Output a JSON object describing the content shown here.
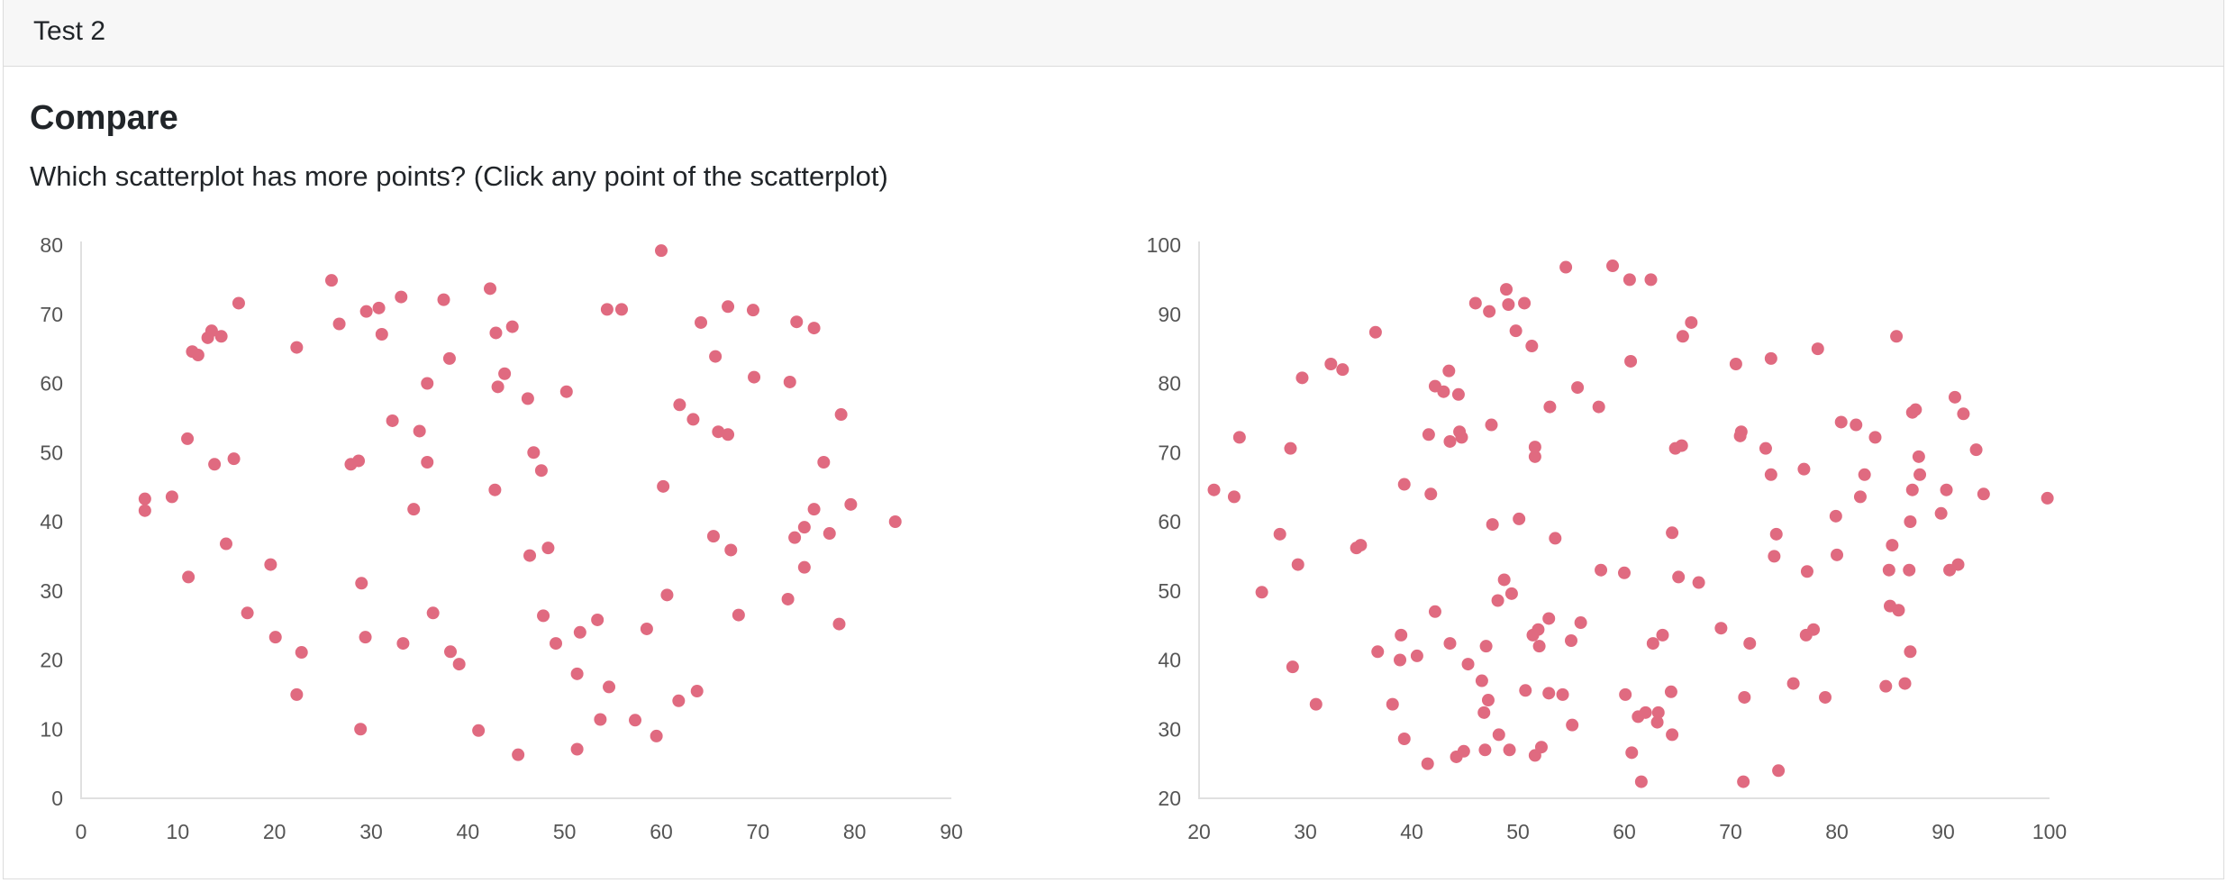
{
  "header": {
    "title": "Test 2"
  },
  "main": {
    "heading": "Compare",
    "question": "Which scatterplot has more points? (Click any point of the scatterplot)"
  },
  "colors": {
    "point": "#e06a80",
    "axis": "#e0e0e0",
    "tick_text": "#555555"
  },
  "chart_data": [
    {
      "type": "scatter",
      "title": "",
      "xlabel": "",
      "ylabel": "",
      "xlim": [
        0,
        90
      ],
      "ylim": [
        0,
        80
      ],
      "x_ticks": [
        0,
        10,
        20,
        30,
        40,
        50,
        60,
        70,
        80,
        90
      ],
      "y_ticks": [
        0,
        10,
        20,
        30,
        40,
        50,
        60,
        70,
        80
      ],
      "grid": false,
      "series": [
        {
          "points": [
            [
              6.6,
              43.3
            ],
            [
              6.6,
              41.6
            ],
            [
              9.4,
              43.6
            ],
            [
              11.0,
              52.0
            ],
            [
              11.1,
              32.0
            ],
            [
              11.5,
              64.6
            ],
            [
              12.1,
              64.1
            ],
            [
              13.1,
              66.6
            ],
            [
              13.5,
              67.6
            ],
            [
              14.5,
              66.8
            ],
            [
              13.8,
              48.3
            ],
            [
              15.0,
              36.8
            ],
            [
              15.8,
              49.1
            ],
            [
              16.3,
              71.6
            ],
            [
              17.2,
              26.8
            ],
            [
              19.6,
              33.8
            ],
            [
              20.1,
              23.3
            ],
            [
              22.3,
              65.2
            ],
            [
              22.3,
              15.0
            ],
            [
              22.8,
              21.1
            ],
            [
              25.9,
              74.9
            ],
            [
              26.7,
              68.6
            ],
            [
              27.9,
              48.3
            ],
            [
              28.7,
              48.8
            ],
            [
              29.0,
              31.1
            ],
            [
              29.4,
              23.3
            ],
            [
              28.9,
              10.0
            ],
            [
              29.5,
              70.4
            ],
            [
              30.8,
              70.9
            ],
            [
              31.1,
              67.1
            ],
            [
              32.2,
              54.6
            ],
            [
              33.1,
              72.5
            ],
            [
              33.3,
              22.4
            ],
            [
              34.4,
              41.8
            ],
            [
              35.0,
              53.1
            ],
            [
              35.8,
              60.0
            ],
            [
              35.8,
              48.6
            ],
            [
              36.4,
              26.8
            ],
            [
              37.5,
              72.1
            ],
            [
              38.1,
              63.6
            ],
            [
              38.2,
              21.2
            ],
            [
              39.1,
              19.4
            ],
            [
              41.1,
              9.8
            ],
            [
              42.3,
              73.7
            ],
            [
              42.8,
              44.6
            ],
            [
              42.9,
              67.3
            ],
            [
              43.1,
              59.5
            ],
            [
              43.8,
              61.4
            ],
            [
              44.6,
              68.2
            ],
            [
              45.2,
              6.3
            ],
            [
              46.2,
              57.8
            ],
            [
              46.4,
              35.1
            ],
            [
              46.8,
              50.0
            ],
            [
              47.6,
              47.4
            ],
            [
              47.8,
              26.4
            ],
            [
              48.3,
              36.2
            ],
            [
              49.1,
              22.4
            ],
            [
              50.2,
              58.8
            ],
            [
              51.3,
              18.0
            ],
            [
              51.6,
              24.0
            ],
            [
              51.3,
              7.1
            ],
            [
              53.4,
              25.8
            ],
            [
              53.7,
              11.4
            ],
            [
              54.4,
              70.7
            ],
            [
              54.6,
              16.1
            ],
            [
              55.9,
              70.7
            ],
            [
              57.3,
              11.3
            ],
            [
              58.5,
              24.5
            ],
            [
              59.5,
              9.0
            ],
            [
              60.0,
              79.2
            ],
            [
              60.2,
              45.1
            ],
            [
              60.6,
              29.4
            ],
            [
              61.9,
              56.9
            ],
            [
              61.8,
              14.1
            ],
            [
              63.3,
              54.8
            ],
            [
              63.7,
              15.5
            ],
            [
              64.1,
              68.8
            ],
            [
              65.4,
              37.9
            ],
            [
              65.6,
              63.9
            ],
            [
              65.9,
              53.0
            ],
            [
              66.9,
              71.1
            ],
            [
              66.9,
              52.6
            ],
            [
              67.2,
              35.9
            ],
            [
              68.0,
              26.5
            ],
            [
              69.5,
              70.6
            ],
            [
              69.6,
              60.9
            ],
            [
              73.1,
              28.8
            ],
            [
              73.3,
              60.2
            ],
            [
              73.8,
              37.7
            ],
            [
              74.0,
              68.9
            ],
            [
              74.8,
              39.2
            ],
            [
              74.8,
              33.4
            ],
            [
              75.8,
              68.0
            ],
            [
              75.8,
              41.8
            ],
            [
              76.8,
              48.6
            ],
            [
              77.4,
              38.3
            ],
            [
              78.4,
              25.2
            ],
            [
              78.6,
              55.5
            ],
            [
              79.6,
              42.5
            ],
            [
              84.2,
              40.0
            ]
          ]
        }
      ]
    },
    {
      "type": "scatter",
      "title": "",
      "xlabel": "",
      "ylabel": "",
      "xlim": [
        20,
        100
      ],
      "ylim": [
        20,
        100
      ],
      "x_ticks": [
        20,
        30,
        40,
        50,
        60,
        70,
        80,
        90,
        100
      ],
      "y_ticks": [
        20,
        30,
        40,
        50,
        60,
        70,
        80,
        90,
        100
      ],
      "grid": false,
      "series": [
        {
          "points": [
            [
              21.4,
              64.6
            ],
            [
              23.3,
              63.6
            ],
            [
              23.8,
              72.2
            ],
            [
              25.9,
              49.8
            ],
            [
              27.6,
              58.2
            ],
            [
              28.6,
              70.6
            ],
            [
              28.8,
              39.0
            ],
            [
              29.3,
              53.8
            ],
            [
              29.7,
              80.8
            ],
            [
              31.0,
              33.6
            ],
            [
              32.4,
              82.8
            ],
            [
              33.5,
              82.0
            ],
            [
              34.8,
              56.2
            ],
            [
              35.2,
              56.6
            ],
            [
              36.6,
              87.4
            ],
            [
              36.8,
              41.2
            ],
            [
              38.2,
              33.6
            ],
            [
              38.9,
              40.0
            ],
            [
              39.0,
              43.6
            ],
            [
              39.3,
              28.6
            ],
            [
              39.3,
              65.4
            ],
            [
              40.5,
              40.6
            ],
            [
              41.5,
              25.0
            ],
            [
              41.6,
              72.6
            ],
            [
              41.8,
              64.0
            ],
            [
              42.2,
              79.6
            ],
            [
              42.2,
              47.0
            ],
            [
              43.0,
              78.8
            ],
            [
              43.6,
              71.6
            ],
            [
              43.5,
              81.8
            ],
            [
              43.6,
              42.4
            ],
            [
              44.2,
              26.0
            ],
            [
              44.4,
              78.4
            ],
            [
              44.5,
              73.0
            ],
            [
              44.7,
              72.2
            ],
            [
              44.9,
              26.8
            ],
            [
              45.3,
              39.4
            ],
            [
              46.0,
              91.6
            ],
            [
              46.6,
              37.0
            ],
            [
              46.8,
              32.4
            ],
            [
              46.9,
              27.0
            ],
            [
              47.0,
              42.0
            ],
            [
              47.2,
              34.2
            ],
            [
              47.3,
              90.4
            ],
            [
              47.5,
              74.0
            ],
            [
              47.6,
              59.6
            ],
            [
              48.1,
              48.6
            ],
            [
              48.2,
              29.2
            ],
            [
              48.7,
              51.6
            ],
            [
              48.9,
              93.6
            ],
            [
              49.1,
              91.4
            ],
            [
              49.2,
              27.0
            ],
            [
              49.4,
              49.6
            ],
            [
              49.8,
              87.6
            ],
            [
              50.1,
              60.4
            ],
            [
              50.6,
              91.6
            ],
            [
              50.7,
              35.6
            ],
            [
              51.3,
              85.4
            ],
            [
              51.4,
              43.6
            ],
            [
              51.6,
              70.8
            ],
            [
              51.6,
              69.4
            ],
            [
              51.9,
              44.4
            ],
            [
              51.6,
              26.2
            ],
            [
              52.0,
              42.0
            ],
            [
              52.2,
              27.4
            ],
            [
              52.9,
              35.2
            ],
            [
              52.9,
              46.0
            ],
            [
              53.0,
              76.6
            ],
            [
              53.5,
              57.6
            ],
            [
              54.2,
              35.0
            ],
            [
              54.5,
              96.8
            ],
            [
              55.0,
              42.8
            ],
            [
              55.1,
              30.6
            ],
            [
              55.6,
              79.4
            ],
            [
              55.9,
              45.4
            ],
            [
              57.6,
              76.6
            ],
            [
              57.8,
              53.0
            ],
            [
              58.9,
              97.0
            ],
            [
              60.0,
              52.6
            ],
            [
              60.1,
              35.0
            ],
            [
              60.5,
              95.0
            ],
            [
              60.6,
              83.2
            ],
            [
              60.7,
              26.6
            ],
            [
              61.3,
              31.8
            ],
            [
              61.6,
              22.4
            ],
            [
              62.0,
              32.4
            ],
            [
              62.5,
              95.0
            ],
            [
              62.7,
              42.4
            ],
            [
              63.1,
              31.0
            ],
            [
              63.2,
              32.4
            ],
            [
              63.6,
              43.6
            ],
            [
              64.4,
              35.4
            ],
            [
              64.5,
              58.4
            ],
            [
              64.5,
              29.2
            ],
            [
              64.8,
              70.6
            ],
            [
              65.1,
              52.0
            ],
            [
              65.4,
              71.0
            ],
            [
              65.5,
              86.8
            ],
            [
              66.3,
              88.8
            ],
            [
              67.0,
              51.2
            ],
            [
              69.1,
              44.6
            ],
            [
              70.5,
              82.8
            ],
            [
              70.9,
              72.4
            ],
            [
              71.0,
              73.0
            ],
            [
              71.2,
              22.4
            ],
            [
              71.3,
              34.6
            ],
            [
              71.8,
              42.4
            ],
            [
              73.3,
              70.6
            ],
            [
              73.8,
              83.6
            ],
            [
              73.8,
              66.8
            ],
            [
              74.1,
              55.0
            ],
            [
              74.3,
              58.2
            ],
            [
              74.5,
              24.0
            ],
            [
              75.9,
              36.6
            ],
            [
              76.9,
              67.6
            ],
            [
              77.1,
              43.6
            ],
            [
              77.2,
              52.8
            ],
            [
              77.8,
              44.4
            ],
            [
              78.2,
              85.0
            ],
            [
              78.9,
              34.6
            ],
            [
              79.9,
              60.8
            ],
            [
              80.0,
              55.2
            ],
            [
              80.4,
              74.4
            ],
            [
              81.8,
              74.0
            ],
            [
              82.2,
              63.6
            ],
            [
              82.6,
              66.8
            ],
            [
              83.6,
              72.2
            ],
            [
              84.6,
              36.2
            ],
            [
              84.9,
              53.0
            ],
            [
              85.0,
              47.8
            ],
            [
              85.2,
              56.6
            ],
            [
              85.6,
              86.8
            ],
            [
              85.8,
              47.2
            ],
            [
              86.4,
              36.6
            ],
            [
              86.8,
              53.0
            ],
            [
              86.9,
              60.0
            ],
            [
              86.9,
              41.2
            ],
            [
              87.1,
              64.6
            ],
            [
              87.1,
              75.8
            ],
            [
              87.4,
              76.2
            ],
            [
              87.7,
              69.4
            ],
            [
              87.8,
              66.8
            ],
            [
              89.8,
              61.2
            ],
            [
              90.3,
              64.6
            ],
            [
              90.6,
              53.0
            ],
            [
              91.1,
              78.0
            ],
            [
              91.4,
              53.8
            ],
            [
              91.9,
              75.6
            ],
            [
              93.1,
              70.4
            ],
            [
              93.8,
              64.0
            ],
            [
              99.8,
              63.4
            ]
          ]
        }
      ]
    }
  ]
}
